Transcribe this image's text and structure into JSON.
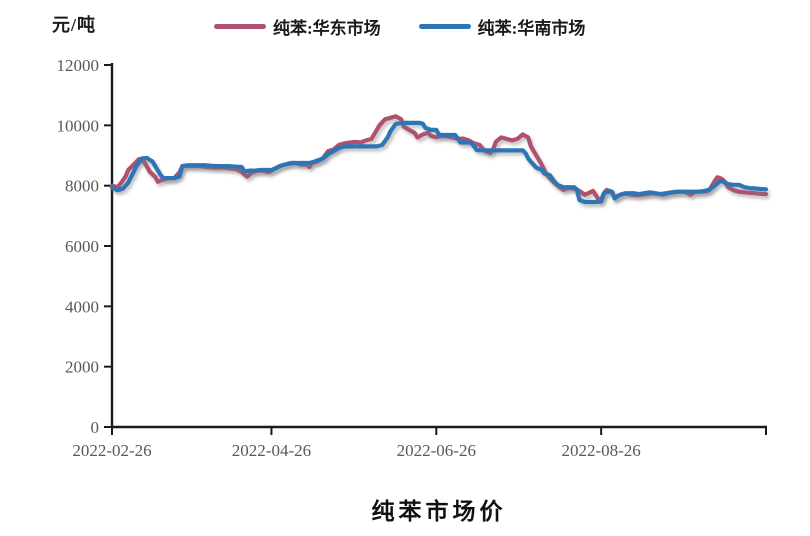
{
  "header": {
    "unit_label": "元/吨"
  },
  "legend": [
    {
      "label": "纯苯:华东市场",
      "color": "#b0516f"
    },
    {
      "label": "纯苯:华南市场",
      "color": "#2e75b6"
    }
  ],
  "title": "纯苯市场价",
  "chart_data": {
    "type": "line",
    "title": "纯苯市场价",
    "ylabel": "元/吨",
    "ylim": [
      0,
      12000
    ],
    "y_ticks": [
      0,
      2000,
      4000,
      6000,
      8000,
      10000,
      12000
    ],
    "x_start_date": "2022-02-26",
    "xlim_days": [
      0,
      242
    ],
    "x_ticks": [
      {
        "day": 0,
        "label": "2022-02-26"
      },
      {
        "day": 59,
        "label": "2022-04-26"
      },
      {
        "day": 120,
        "label": "2022-06-26"
      },
      {
        "day": 181,
        "label": "2022-08-26"
      },
      {
        "day": 242,
        "label": ""
      }
    ],
    "grid": false,
    "legend_position": "top",
    "series": [
      {
        "name": "纯苯:华东市场",
        "color": "#b0516f",
        "points": [
          [
            0,
            8000
          ],
          [
            2,
            7950
          ],
          [
            3,
            8050
          ],
          [
            5,
            8300
          ],
          [
            6,
            8520
          ],
          [
            8,
            8700
          ],
          [
            10,
            8880
          ],
          [
            11,
            8850
          ],
          [
            12,
            8780
          ],
          [
            14,
            8460
          ],
          [
            16,
            8290
          ],
          [
            17,
            8130
          ],
          [
            19,
            8200
          ],
          [
            21,
            8250
          ],
          [
            23,
            8250
          ],
          [
            25,
            8450
          ],
          [
            26,
            8650
          ],
          [
            29,
            8650
          ],
          [
            32,
            8650
          ],
          [
            35,
            8620
          ],
          [
            38,
            8600
          ],
          [
            41,
            8600
          ],
          [
            44,
            8570
          ],
          [
            46,
            8550
          ],
          [
            48,
            8450
          ],
          [
            50,
            8300
          ],
          [
            52,
            8450
          ],
          [
            54,
            8500
          ],
          [
            56,
            8500
          ],
          [
            58,
            8450
          ],
          [
            60,
            8550
          ],
          [
            62,
            8650
          ],
          [
            64,
            8700
          ],
          [
            66,
            8750
          ],
          [
            68,
            8750
          ],
          [
            70,
            8700
          ],
          [
            72,
            8700
          ],
          [
            73,
            8620
          ],
          [
            74,
            8750
          ],
          [
            76,
            8800
          ],
          [
            78,
            8900
          ],
          [
            80,
            9150
          ],
          [
            82,
            9200
          ],
          [
            84,
            9350
          ],
          [
            86,
            9400
          ],
          [
            88,
            9430
          ],
          [
            90,
            9450
          ],
          [
            92,
            9430
          ],
          [
            94,
            9500
          ],
          [
            96,
            9550
          ],
          [
            97,
            9700
          ],
          [
            99,
            10000
          ],
          [
            101,
            10200
          ],
          [
            103,
            10250
          ],
          [
            105,
            10300
          ],
          [
            106,
            10250
          ],
          [
            107,
            10200
          ],
          [
            108,
            9950
          ],
          [
            110,
            9850
          ],
          [
            112,
            9750
          ],
          [
            113,
            9600
          ],
          [
            115,
            9700
          ],
          [
            117,
            9750
          ],
          [
            118,
            9650
          ],
          [
            120,
            9600
          ],
          [
            122,
            9650
          ],
          [
            124,
            9640
          ],
          [
            126,
            9600
          ],
          [
            128,
            9550
          ],
          [
            130,
            9560
          ],
          [
            132,
            9500
          ],
          [
            134,
            9400
          ],
          [
            136,
            9350
          ],
          [
            138,
            9150
          ],
          [
            140,
            9080
          ],
          [
            141,
            9200
          ],
          [
            142,
            9450
          ],
          [
            144,
            9600
          ],
          [
            146,
            9550
          ],
          [
            148,
            9500
          ],
          [
            150,
            9550
          ],
          [
            152,
            9700
          ],
          [
            154,
            9600
          ],
          [
            155,
            9300
          ],
          [
            157,
            9000
          ],
          [
            159,
            8700
          ],
          [
            160,
            8500
          ],
          [
            161,
            8350
          ],
          [
            163,
            8150
          ],
          [
            165,
            8000
          ],
          [
            167,
            7860
          ],
          [
            169,
            7920
          ],
          [
            171,
            7900
          ],
          [
            173,
            7820
          ],
          [
            175,
            7700
          ],
          [
            177,
            7780
          ],
          [
            178,
            7830
          ],
          [
            180,
            7550
          ],
          [
            181,
            7520
          ],
          [
            182,
            7750
          ],
          [
            183,
            7860
          ],
          [
            185,
            7800
          ],
          [
            186,
            7580
          ],
          [
            187,
            7650
          ],
          [
            188,
            7700
          ],
          [
            190,
            7750
          ],
          [
            192,
            7700
          ],
          [
            194,
            7680
          ],
          [
            196,
            7700
          ],
          [
            198,
            7720
          ],
          [
            200,
            7750
          ],
          [
            202,
            7730
          ],
          [
            204,
            7700
          ],
          [
            206,
            7750
          ],
          [
            208,
            7780
          ],
          [
            210,
            7800
          ],
          [
            212,
            7800
          ],
          [
            214,
            7700
          ],
          [
            216,
            7800
          ],
          [
            218,
            7800
          ],
          [
            220,
            7810
          ],
          [
            221,
            7850
          ],
          [
            223,
            8150
          ],
          [
            224,
            8280
          ],
          [
            225,
            8250
          ],
          [
            226,
            8200
          ],
          [
            227,
            8100
          ],
          [
            228,
            7950
          ],
          [
            230,
            7850
          ],
          [
            232,
            7800
          ],
          [
            234,
            7780
          ],
          [
            236,
            7760
          ],
          [
            238,
            7750
          ],
          [
            240,
            7730
          ],
          [
            242,
            7720
          ]
        ]
      },
      {
        "name": "纯苯:华南市场",
        "color": "#2e75b6",
        "points": [
          [
            0,
            7950
          ],
          [
            1,
            7900
          ],
          [
            2,
            7850
          ],
          [
            4,
            7900
          ],
          [
            6,
            8100
          ],
          [
            8,
            8450
          ],
          [
            9,
            8650
          ],
          [
            11,
            8900
          ],
          [
            13,
            8920
          ],
          [
            14,
            8850
          ],
          [
            15,
            8800
          ],
          [
            17,
            8500
          ],
          [
            18,
            8350
          ],
          [
            19,
            8250
          ],
          [
            21,
            8250
          ],
          [
            23,
            8250
          ],
          [
            25,
            8300
          ],
          [
            26,
            8650
          ],
          [
            28,
            8680
          ],
          [
            31,
            8680
          ],
          [
            34,
            8680
          ],
          [
            37,
            8660
          ],
          [
            40,
            8650
          ],
          [
            43,
            8650
          ],
          [
            46,
            8630
          ],
          [
            48,
            8620
          ],
          [
            49,
            8470
          ],
          [
            51,
            8500
          ],
          [
            53,
            8500
          ],
          [
            55,
            8520
          ],
          [
            57,
            8520
          ],
          [
            59,
            8520
          ],
          [
            61,
            8600
          ],
          [
            63,
            8680
          ],
          [
            65,
            8720
          ],
          [
            67,
            8750
          ],
          [
            70,
            8750
          ],
          [
            73,
            8750
          ],
          [
            75,
            8800
          ],
          [
            78,
            8900
          ],
          [
            80,
            9050
          ],
          [
            82,
            9150
          ],
          [
            84,
            9250
          ],
          [
            86,
            9300
          ],
          [
            89,
            9300
          ],
          [
            92,
            9300
          ],
          [
            95,
            9300
          ],
          [
            98,
            9300
          ],
          [
            100,
            9350
          ],
          [
            102,
            9600
          ],
          [
            103,
            9800
          ],
          [
            105,
            10050
          ],
          [
            108,
            10080
          ],
          [
            111,
            10080
          ],
          [
            114,
            10080
          ],
          [
            115,
            10050
          ],
          [
            116,
            9910
          ],
          [
            118,
            9850
          ],
          [
            120,
            9850
          ],
          [
            121,
            9680
          ],
          [
            124,
            9680
          ],
          [
            127,
            9680
          ],
          [
            129,
            9430
          ],
          [
            131,
            9430
          ],
          [
            133,
            9420
          ],
          [
            135,
            9180
          ],
          [
            138,
            9170
          ],
          [
            141,
            9170
          ],
          [
            144,
            9170
          ],
          [
            147,
            9170
          ],
          [
            150,
            9170
          ],
          [
            152,
            9170
          ],
          [
            153,
            9080
          ],
          [
            154,
            8900
          ],
          [
            155,
            8790
          ],
          [
            157,
            8600
          ],
          [
            159,
            8520
          ],
          [
            160,
            8400
          ],
          [
            162,
            8350
          ],
          [
            164,
            8100
          ],
          [
            165,
            8020
          ],
          [
            167,
            7950
          ],
          [
            169,
            7950
          ],
          [
            171,
            7950
          ],
          [
            172,
            7880
          ],
          [
            173,
            7520
          ],
          [
            175,
            7460
          ],
          [
            177,
            7460
          ],
          [
            179,
            7460
          ],
          [
            181,
            7480
          ],
          [
            182,
            7750
          ],
          [
            183,
            7790
          ],
          [
            185,
            7800
          ],
          [
            186,
            7580
          ],
          [
            187,
            7650
          ],
          [
            189,
            7720
          ],
          [
            191,
            7750
          ],
          [
            193,
            7750
          ],
          [
            195,
            7720
          ],
          [
            197,
            7750
          ],
          [
            199,
            7780
          ],
          [
            201,
            7750
          ],
          [
            203,
            7720
          ],
          [
            205,
            7750
          ],
          [
            207,
            7780
          ],
          [
            209,
            7800
          ],
          [
            211,
            7800
          ],
          [
            213,
            7800
          ],
          [
            215,
            7800
          ],
          [
            217,
            7800
          ],
          [
            219,
            7820
          ],
          [
            221,
            7870
          ],
          [
            223,
            8000
          ],
          [
            225,
            8150
          ],
          [
            226,
            8140
          ],
          [
            228,
            8050
          ],
          [
            230,
            8030
          ],
          [
            232,
            8030
          ],
          [
            234,
            7950
          ],
          [
            236,
            7920
          ],
          [
            238,
            7910
          ],
          [
            240,
            7890
          ],
          [
            242,
            7880
          ]
        ]
      }
    ]
  },
  "colors": {
    "axis": "#1a1a1a",
    "tick_label": "#595959",
    "background": "#ffffff"
  }
}
